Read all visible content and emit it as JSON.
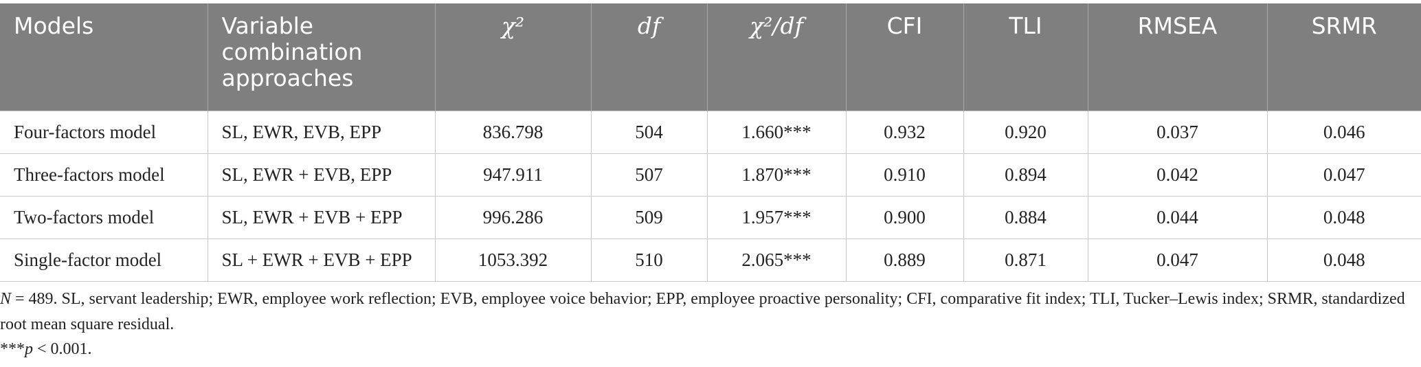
{
  "table": {
    "header": [
      "Models",
      "Variable combination approaches",
      "χ²",
      "df",
      "χ²/df",
      "CFI",
      "TLI",
      "RMSEA",
      "SRMR"
    ],
    "rows": [
      [
        "Four-factors model",
        "SL, EWR, EVB, EPP",
        "836.798",
        "504",
        "1.660***",
        "0.932",
        "0.920",
        "0.037",
        "0.046"
      ],
      [
        "Three-factors model",
        "SL, EWR + EVB, EPP",
        "947.911",
        "507",
        "1.870***",
        "0.910",
        "0.894",
        "0.042",
        "0.047"
      ],
      [
        "Two-factors model",
        "SL, EWR + EVB + EPP",
        "996.286",
        "509",
        "1.957***",
        "0.900",
        "0.884",
        "0.044",
        "0.048"
      ],
      [
        "Single-factor model",
        "SL + EWR + EVB + EPP",
        "1053.392",
        "510",
        "2.065***",
        "0.889",
        "0.871",
        "0.047",
        "0.048"
      ]
    ]
  },
  "notes": [
    {
      "var": "N",
      "text": " = 489. SL, servant leadership; EWR, employee work reflection; EVB, employee voice behavior; EPP, employee proactive personality; CFI, comparative fit index; TLI, Tucker–Lewis index; SRMR, standardized root mean square residual."
    },
    {
      "prefix": "***",
      "var": "p",
      "text": " < 0.001."
    }
  ]
}
